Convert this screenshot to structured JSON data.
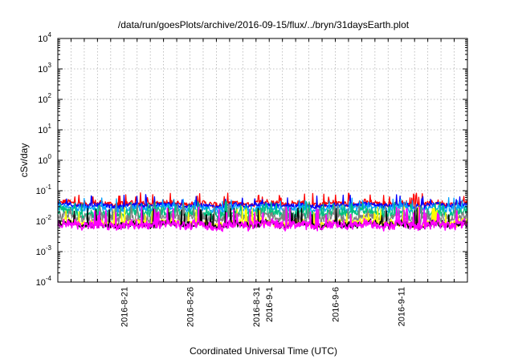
{
  "chart_data": {
    "type": "line",
    "title": "/data/run/goesPlots/archive/2016-09-15/flux/../bryn/31daysEarth.plot",
    "xlabel": "Coordinated Universal Time (UTC)",
    "ylabel": "cSv/day",
    "yscale": "log",
    "ylim": [
      0.0001,
      10000
    ],
    "y_ticks": [
      {
        "value": 0.0001,
        "base": "10",
        "exp": "-4"
      },
      {
        "value": 0.001,
        "base": "10",
        "exp": "-3"
      },
      {
        "value": 0.01,
        "base": "10",
        "exp": "-2"
      },
      {
        "value": 0.1,
        "base": "10",
        "exp": "-1"
      },
      {
        "value": 1,
        "base": "10",
        "exp": "0"
      },
      {
        "value": 10,
        "base": "10",
        "exp": "1"
      },
      {
        "value": 100,
        "base": "10",
        "exp": "2"
      },
      {
        "value": 1000,
        "base": "10",
        "exp": "3"
      },
      {
        "value": 10000,
        "base": "10",
        "exp": "4"
      }
    ],
    "xlim": [
      "2016-08-16",
      "2016-09-16"
    ],
    "x_ticks": [
      {
        "date": "2016-08-21",
        "label": "2016-8-21"
      },
      {
        "date": "2016-08-26",
        "label": "2016-8-26"
      },
      {
        "date": "2016-08-31",
        "label": "2016-8-31"
      },
      {
        "date": "2016-09-01",
        "label": "2016-9-1"
      },
      {
        "date": "2016-09-06",
        "label": "2016-9-6"
      },
      {
        "date": "2016-09-11",
        "label": "2016-9-11"
      }
    ],
    "grid": true,
    "series": [
      {
        "color": "#ff0000",
        "median": 0.038,
        "low_median": 0.03,
        "high": 0.085
      },
      {
        "color": "#0000ff",
        "median": 0.033,
        "low_median": 0.027,
        "high": 0.075
      },
      {
        "color": "#00a0ff",
        "median": 0.026,
        "low_median": 0.02,
        "high": 0.06
      },
      {
        "color": "#00c080",
        "median": 0.018,
        "low_median": 0.012,
        "high": 0.045
      },
      {
        "color": "#808080",
        "median": 0.013,
        "low_median": 0.009,
        "high": 0.038
      },
      {
        "color": "#ffff00",
        "median": 0.0085,
        "low_median": 0.0062,
        "high": 0.03
      },
      {
        "color": "#000000",
        "median": 0.0078,
        "low_median": 0.0058,
        "high": 0.028
      },
      {
        "color": "#ff00ff",
        "median": 0.0075,
        "low_median": 0.0052,
        "high": 0.03
      }
    ]
  }
}
